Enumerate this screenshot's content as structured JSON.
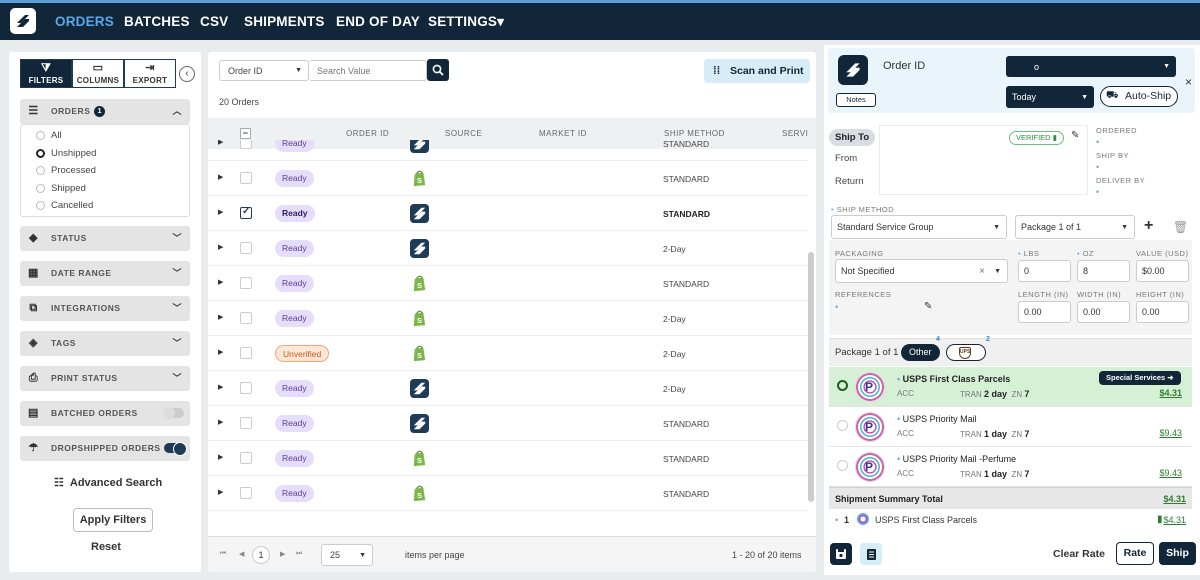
{
  "nav": {
    "items": [
      "ORDERS",
      "BATCHES",
      "CSV",
      "SHIPMENTS",
      "END OF DAY",
      "SETTINGS"
    ],
    "active": "ORDERS",
    "settings_caret": "▾"
  },
  "filters": {
    "tabs": [
      {
        "label": "FILTERS",
        "icon": "filter-icon"
      },
      {
        "label": "COLUMNS",
        "icon": "columns-icon"
      },
      {
        "label": "EXPORT",
        "icon": "export-icon"
      }
    ],
    "orders_label": "ORDERS",
    "orders_badge": "1",
    "order_options": [
      "All",
      "Unshipped",
      "Processed",
      "Shipped",
      "Cancelled"
    ],
    "selected_option": "Unshipped",
    "sections": [
      "STATUS",
      "DATE RANGE",
      "INTEGRATIONS",
      "TAGS",
      "PRINT STATUS"
    ],
    "batched_label": "BATCHED ORDERS",
    "batched_on": false,
    "dropshipped_label": "DROPSHIPPED ORDERS",
    "dropshipped_on": true,
    "advanced_search": "Advanced Search",
    "apply": "Apply Filters",
    "reset": "Reset"
  },
  "orders": {
    "search_field": "Order ID",
    "search_placeholder": "Search Value",
    "scan_print": "Scan and Print",
    "count_text": "20 Orders",
    "columns": [
      "ORDER ID",
      "SOURCE",
      "MARKET ID",
      "SHIP METHOD",
      "SERVI"
    ],
    "rows": [
      {
        "status": "Ready",
        "source": "shipstation",
        "method": "STANDARD",
        "checked": false
      },
      {
        "status": "Ready",
        "source": "shopify",
        "method": "STANDARD",
        "checked": false
      },
      {
        "status": "Ready",
        "source": "shipstation",
        "method": "STANDARD",
        "checked": true
      },
      {
        "status": "Ready",
        "source": "shipstation",
        "method": "2-Day",
        "checked": false
      },
      {
        "status": "Ready",
        "source": "shopify",
        "method": "STANDARD",
        "checked": false
      },
      {
        "status": "Ready",
        "source": "shopify",
        "method": "2-Day",
        "checked": false
      },
      {
        "status": "Unverified",
        "source": "shopify",
        "method": "2-Day",
        "checked": false
      },
      {
        "status": "Ready",
        "source": "shipstation",
        "method": "2-Day",
        "checked": false
      },
      {
        "status": "Ready",
        "source": "shipstation",
        "method": "STANDARD",
        "checked": false
      },
      {
        "status": "Ready",
        "source": "shopify",
        "method": "STANDARD",
        "checked": false
      },
      {
        "status": "Ready",
        "source": "shopify",
        "method": "STANDARD",
        "checked": false
      }
    ],
    "current_page": "1",
    "per_page": "25",
    "items_per_page": "items per page",
    "range": "1 - 20 of 20 items"
  },
  "detail": {
    "order_id_label": "Order ID",
    "notes": "Notes",
    "account_value": "o",
    "date_value": "Today",
    "auto_ship": "Auto-Ship",
    "close": "×",
    "address_tabs": [
      "Ship To",
      "From",
      "Return"
    ],
    "verified": "VERIFIED",
    "ordered_label": "ORDERED",
    "ship_by_label": "SHIP BY",
    "deliver_by_label": "DELIVER BY",
    "ship_method_label": "SHIP METHOD",
    "ship_method_value": "Standard Service Group",
    "package_select": "Package 1 of 1",
    "packaging_label": "PACKAGING",
    "packaging_value": "Not Specified",
    "lbs_label": "LBS",
    "lbs_value": "0",
    "oz_label": "OZ",
    "oz_value": "8",
    "value_label": "VALUE (USD)",
    "value_value": "$0.00",
    "references_label": "REFERENCES",
    "length_label": "LENGTH (IN)",
    "length_value": "0.00",
    "width_label": "WIDTH (IN)",
    "width_value": "0.00",
    "height_label": "HEIGHT (IN)",
    "height_value": "0.00",
    "rates_package": "Package 1 of 1",
    "other_tab": "Other",
    "other_count": "4",
    "ups_label": "UPS",
    "ups_count": "2",
    "special_services": "Special Services ➜",
    "rates": [
      {
        "service": "USPS First Class Parcels",
        "acc": "ACC",
        "tran_label": "TRAN",
        "tran": "2 day",
        "zn_label": "ZN",
        "zn": "7",
        "price": "$4.31",
        "selected": true
      },
      {
        "service": "USPS Priority Mail",
        "acc": "ACC",
        "tran_label": "TRAN",
        "tran": "1 day",
        "zn_label": "ZN",
        "zn": "7",
        "price": "$9.43",
        "selected": false
      },
      {
        "service": "USPS Priority Mail -Perfume",
        "acc": "ACC",
        "tran_label": "TRAN",
        "tran": "1 day",
        "zn_label": "ZN",
        "zn": "7",
        "price": "$9.43",
        "selected": false
      }
    ],
    "carrier_letter": "P",
    "summary_title": "Shipment Summary Total",
    "summary_total": "$4.31",
    "summary_qty": "1",
    "summary_service": "USPS First Class Parcels",
    "summary_price": "$4.31",
    "clear_rate": "Clear Rate",
    "rate": "Rate",
    "ship": "Ship"
  },
  "colors": {
    "navy": "#12263a",
    "accent": "#5aa7e8",
    "ready": "#e6dcfb",
    "green": "#2e7d32"
  }
}
